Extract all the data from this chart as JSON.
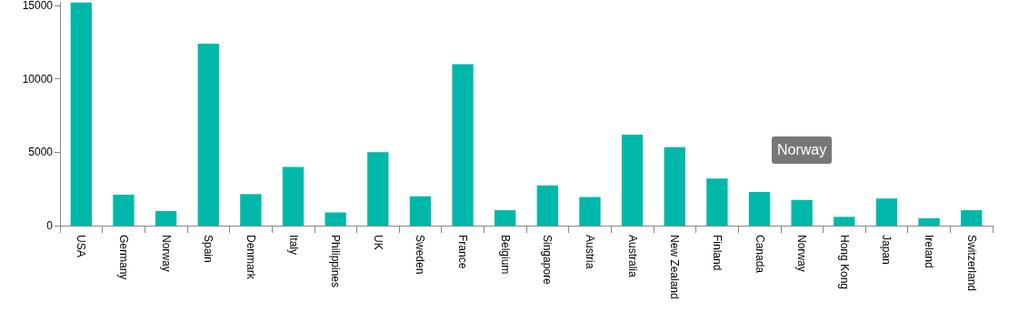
{
  "chart_data": {
    "type": "bar",
    "categories": [
      "USA",
      "Germany",
      "Norway",
      "Spain",
      "Denmark",
      "Italy",
      "Philippines",
      "UK",
      "Sweden",
      "France",
      "Belgium",
      "Singapore",
      "Austria",
      "Australia",
      "New Zealand",
      "Finland",
      "Canada",
      "Norway",
      "Hong Kong",
      "Japan",
      "Ireland",
      "Switzerland"
    ],
    "values": [
      15200,
      2100,
      1000,
      12400,
      2150,
      4000,
      900,
      5000,
      2000,
      11000,
      1050,
      2750,
      1950,
      6200,
      5350,
      3200,
      2300,
      1750,
      600,
      1850,
      500,
      1050
    ],
    "color": "#00b8aa",
    "ylim": [
      0,
      15200
    ],
    "yticks": [
      0,
      5000,
      10000,
      15000
    ],
    "annotations": [
      "Norway"
    ],
    "grid": false
  }
}
